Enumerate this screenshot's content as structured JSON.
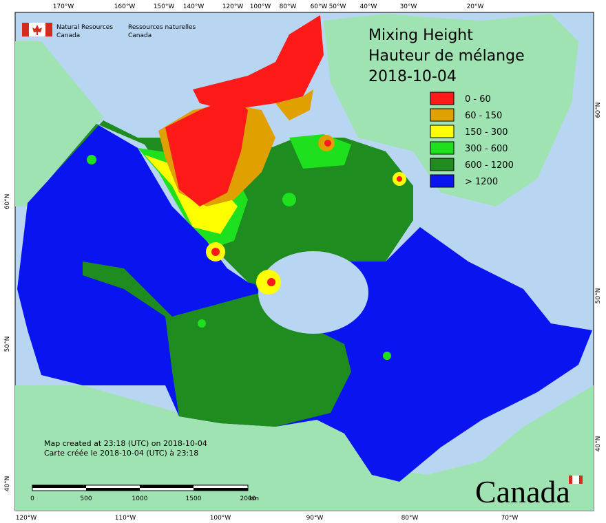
{
  "header": {
    "agency_en": [
      "Natural Resources",
      "Canada"
    ],
    "agency_fr": [
      "Ressources naturelles",
      "Canada"
    ]
  },
  "title": [
    "Mixing Height",
    "Hauteur de mélange",
    "2018-10-04"
  ],
  "legend": [
    {
      "label": "0 - 60",
      "color": "#ff1a1a"
    },
    {
      "label": "60 - 150",
      "color": "#e0a000"
    },
    {
      "label": "150 - 300",
      "color": "#ffff00"
    },
    {
      "label": "300 - 600",
      "color": "#1ee01e"
    },
    {
      "label": "600 - 1200",
      "color": "#1e8c1e"
    },
    {
      "label": "> 1200",
      "color": "#0a14f0"
    }
  ],
  "footer": [
    "Map created at 23:18 (UTC) on 2018-10-04",
    "Carte créée le 2018-10-04 (UTC) à 23:18"
  ],
  "scale": {
    "labels": [
      "0",
      "500",
      "1000",
      "1500",
      "2000"
    ],
    "unit": "km"
  },
  "wordmark": "Canada",
  "top_labels": [
    "170°W",
    "160°W",
    "150°W",
    "140°W",
    "120°W",
    "100°W",
    "80°W",
    "60°W",
    "50°W",
    "40°W",
    "30°W",
    "20°W"
  ],
  "bottom_labels": [
    "120°W",
    "110°W",
    "100°W",
    "90°W",
    "80°W",
    "70°W"
  ],
  "left_labels": [
    "60°N",
    "50°N",
    "40°N"
  ],
  "right_labels": [
    "60°N",
    "50°N",
    "40°N"
  ]
}
